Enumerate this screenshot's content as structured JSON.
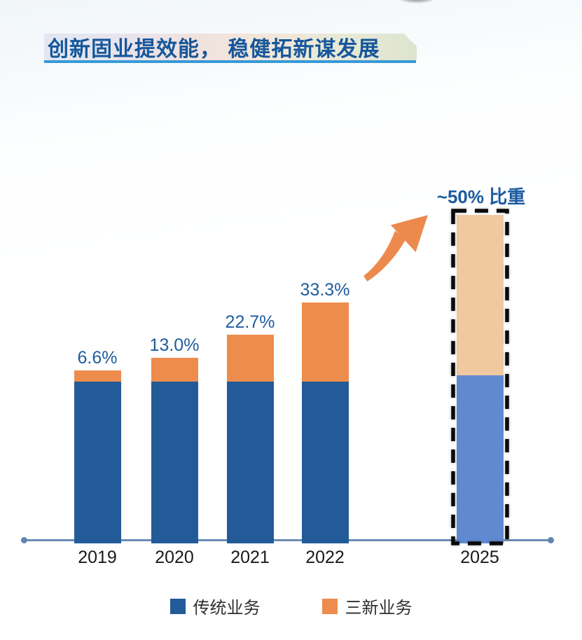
{
  "header": {
    "title": "创新固业提效能， 稳健拓新谋发展"
  },
  "chart_data": {
    "type": "bar",
    "stacked": true,
    "grid": false,
    "categories": [
      "2019",
      "2020",
      "2021",
      "2022",
      "2025"
    ],
    "series": [
      {
        "name": "传统业务",
        "color": "#235b98",
        "projected_color": "#6189d0",
        "values": [
          100,
          100,
          100,
          100,
          104
        ]
      },
      {
        "name": "三新业务",
        "color": "#ed8c4c",
        "projected_color": "#f0c9a0",
        "values": [
          7.1,
          14.9,
          29.4,
          49.9,
          101
        ]
      }
    ],
    "new_business_share_pct": [
      6.6,
      13.0,
      22.7,
      33.3,
      50
    ],
    "share_labels": [
      "6.6%",
      "13.0%",
      "22.7%",
      "33.3%",
      null
    ],
    "projected_index": 4,
    "annotation": "~50% 比重",
    "legend": [
      {
        "label": "传统业务",
        "color": "#235b98"
      },
      {
        "label": "三新业务",
        "color": "#ed8c4c"
      }
    ],
    "axis_color": "#6a8db5",
    "share_label_color": "#1e5c9e",
    "year_label_color": "#1a1a1a"
  }
}
